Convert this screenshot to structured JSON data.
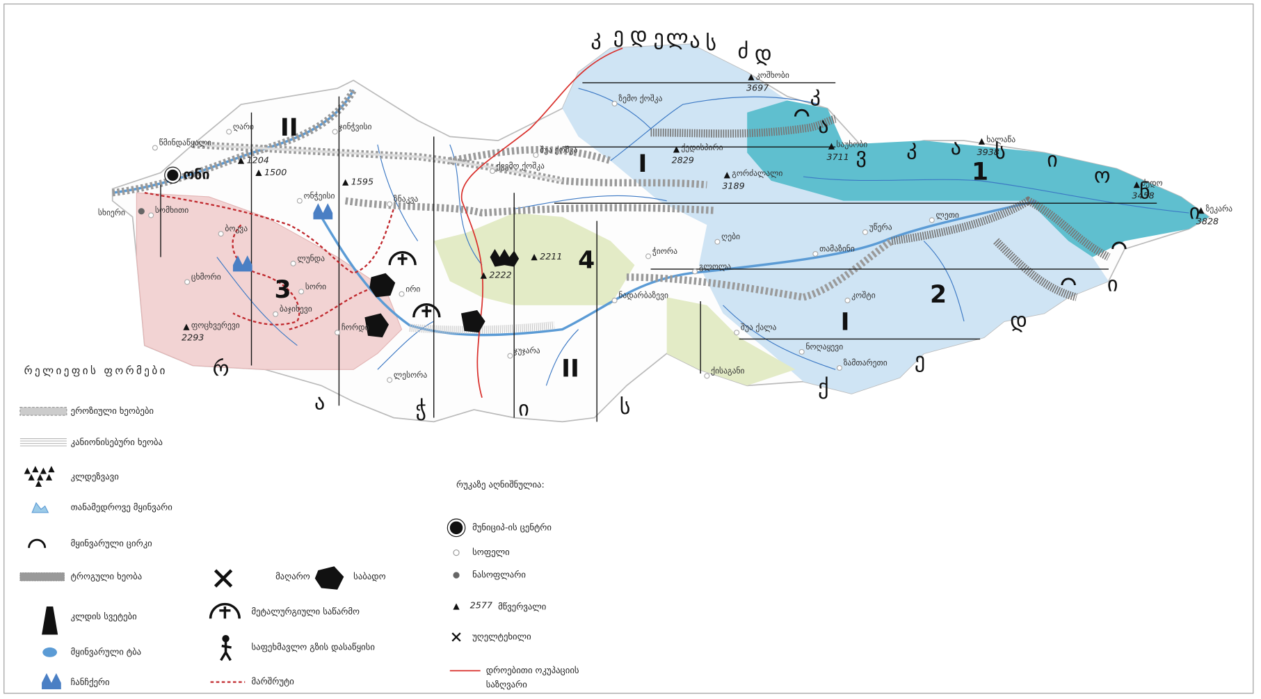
{
  "map": {
    "ridges": [
      {
        "letters": [
          "კ",
          "ე",
          "დ",
          "ე",
          "ლ",
          "ა",
          "ს",
          "ძ",
          "დ"
        ]
      },
      {
        "letters": [
          "კ",
          "ა",
          "ვ",
          "კ",
          "ა",
          "ს",
          "ი",
          "ო",
          "ნ",
          "ი"
        ]
      },
      {
        "letters": [
          "რ",
          "ა",
          "ჭ",
          "ი",
          "ს"
        ]
      },
      {
        "letters": [
          "ქ",
          "ე",
          "დ",
          "ი"
        ]
      }
    ],
    "zones": [
      "1",
      "2",
      "3",
      "4"
    ],
    "numerals": [
      "II",
      "I",
      "I",
      "II"
    ],
    "places": [
      "ონი",
      "სხიერი",
      "სომხითი",
      "წმინდაწყალი",
      "ღარი",
      "ჯინჭვისი",
      "ბაჯიხევი",
      "ცხმორი",
      "ლუნდა",
      "ჩორდი",
      "ირი",
      "ლესორა",
      "ჯუჯარა",
      "ნადარბაზევი",
      "ლეთი",
      "უწერა",
      "თამაზინი",
      "ღები",
      "ჭიორა",
      "გლოლა",
      "შუა ქალა",
      "ზემო ქოშკა",
      "შუა ქოშკა",
      "ქვემო ქოშკა",
      "ქისაგანი",
      "ზამთარეთი",
      "ნოღაყევი",
      "კოშტი",
      "სორი",
      "ონჭეისი",
      "ზნაკვა",
      "ბოკვა"
    ],
    "peaks": [
      {
        "name": "კოშხობი",
        "elevation": 3697
      },
      {
        "name": "საუხობი",
        "elevation": 3711
      },
      {
        "name": "ხალაწა",
        "elevation": 3938
      },
      {
        "name": "ძედო",
        "elevation": 3458
      },
      {
        "name": "ზეკარა",
        "elevation": 3828
      },
      {
        "name": "ქედისპირი",
        "elevation": 2829
      },
      {
        "name": "გორძალალი",
        "elevation": 3189
      },
      {
        "name": "ფოცხვერევი",
        "elevation": 2293
      },
      {
        "elevation": 1204
      },
      {
        "elevation": 1500
      },
      {
        "elevation": 1595
      },
      {
        "elevation": 2211
      },
      {
        "elevation": 2222
      }
    ],
    "legend": {
      "title": "რელიეფის ფორმები",
      "relief": [
        "ეროზიული ხეობები",
        "კანიონისებური ხეობა",
        "კლდეზვავი",
        "თანამედროვე მყინვარი",
        "მყინვარული ცირკი",
        "ტროგული ხეობა",
        "კლდის სვეტები",
        "მყინვარული ტბა",
        "ჩანჩქერი"
      ],
      "other": [
        "მაღარო",
        "საბადო",
        "მეტალურგიული საწარმო",
        "საფეხმავლო გზის დასაწყისი",
        "მარშრუტი"
      ]
    },
    "key": {
      "title": "რუკაზე აღნიშნულია:",
      "items": [
        "მუნიციპ-ის ცენტრი",
        "სოფელი",
        "ნასოფლარი",
        "უღელტეხილი"
      ],
      "peak_example": {
        "elevation": 2577,
        "label": "მწვერვალი"
      },
      "border": [
        "დროებითი ოკუპაციის",
        "საზღვარი"
      ]
    }
  }
}
